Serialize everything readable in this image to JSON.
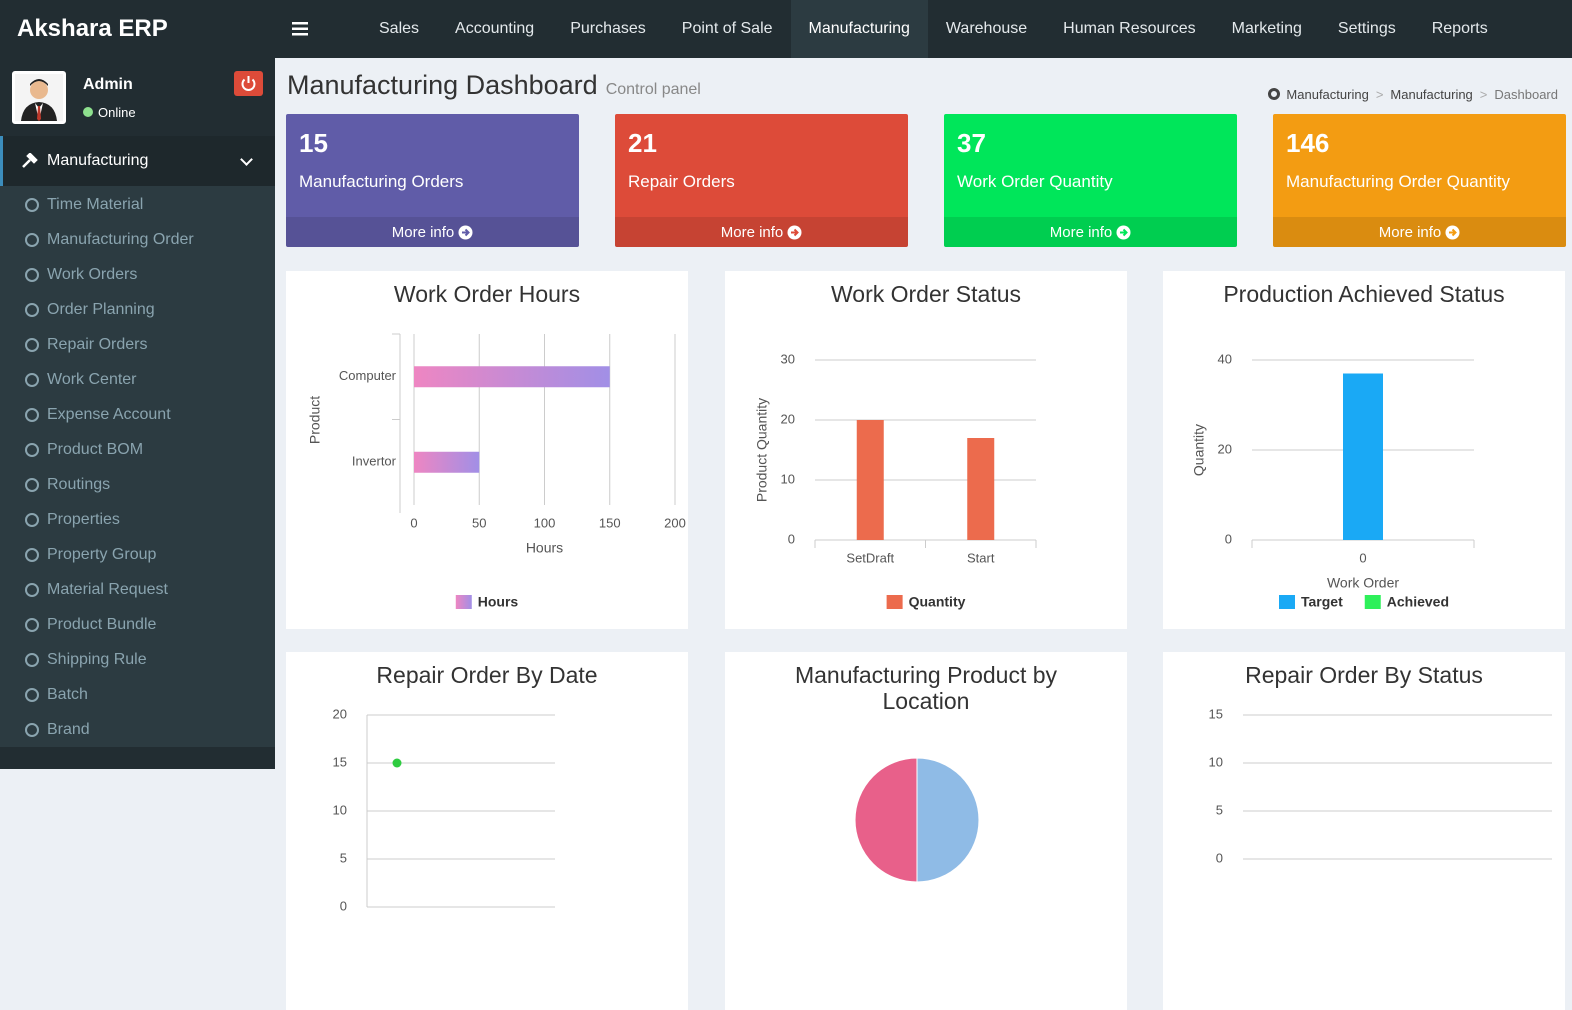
{
  "brand": "Akshara ERP",
  "user": {
    "name": "Admin",
    "status": "Online"
  },
  "nav": {
    "items": [
      "Sales",
      "Accounting",
      "Purchases",
      "Point of Sale",
      "Manufacturing",
      "Warehouse",
      "Human Resources",
      "Marketing",
      "Settings",
      "Reports"
    ],
    "active": 4
  },
  "sidebar": {
    "active": "Manufacturing",
    "items": [
      "Time Material",
      "Manufacturing Order",
      "Work Orders",
      "Order Planning",
      "Repair Orders",
      "Work Center",
      "Expense Account",
      "Product BOM",
      "Routings",
      "Properties",
      "Property Group",
      "Material Request",
      "Product Bundle",
      "Shipping Rule",
      "Batch",
      "Brand"
    ]
  },
  "header": {
    "title": "Manufacturing Dashboard",
    "subtitle": "Control panel"
  },
  "breadcrumb": {
    "items": [
      "Manufacturing",
      "Manufacturing",
      "Dashboard"
    ],
    "separator": ">"
  },
  "boxes": [
    {
      "value": 15,
      "label": "Manufacturing Orders",
      "link": "More info",
      "color": "#605ca8"
    },
    {
      "value": 21,
      "label": "Repair Orders",
      "link": "More info",
      "color": "#dd4b39"
    },
    {
      "value": 37,
      "label": "Work Order Quantity",
      "link": "More info",
      "color": "#00e65a"
    },
    {
      "value": 146,
      "label": "Manufacturing Order Quantity",
      "link": "More info",
      "color": "#f39c12"
    }
  ],
  "chart_data": [
    {
      "type": "hbar",
      "title": "Work Order Hours",
      "categories": [
        "Computer",
        "Invertor"
      ],
      "series": [
        {
          "name": "Hours",
          "color": [
            "#ee86c2",
            "#a18fe6"
          ],
          "values": [
            150,
            50
          ]
        }
      ],
      "xlim": [
        0,
        200
      ],
      "xticks": [
        0,
        50,
        100,
        150,
        200
      ],
      "xlabel": "Hours",
      "ylabel": "Product",
      "grid": true
    },
    {
      "type": "bar",
      "title": "Work Order Status",
      "categories": [
        "SetDraft",
        "Start"
      ],
      "series": [
        {
          "name": "Quantity",
          "color": "#ec6b4d",
          "values": [
            20,
            17
          ]
        }
      ],
      "ylim": [
        0,
        30
      ],
      "yticks": [
        0,
        10,
        20,
        30
      ],
      "ylabel": "Product Quantity",
      "grid": true
    },
    {
      "type": "bar",
      "title": "Production Achieved Status",
      "categories": [
        "0"
      ],
      "series": [
        {
          "name": "Target",
          "color": "#1aa9f5",
          "values": [
            37
          ]
        },
        {
          "name": "Achieved",
          "color": "#2ef05a",
          "values": [
            0
          ]
        }
      ],
      "ylim": [
        0,
        40
      ],
      "yticks": [
        0,
        20,
        40
      ],
      "xlabel": "Work Order",
      "ylabel": "Quantity",
      "grid": true
    },
    {
      "type": "line",
      "title": "Repair Order By Date",
      "categories": [
        null
      ],
      "series": [
        {
          "color": "#2ecc40",
          "values": [
            15
          ]
        }
      ],
      "ylim": [
        0,
        20
      ],
      "yticks": [
        0,
        5,
        10,
        15,
        20
      ],
      "grid": true
    },
    {
      "type": "pie",
      "title": "Manufacturing Product by Location",
      "values": [
        50,
        50
      ],
      "colors": [
        "#8fbbe6",
        "#e8608a"
      ]
    },
    {
      "type": "bar",
      "title": "Repair Order By Status",
      "categories": [],
      "series": [],
      "ylim": [
        0,
        15
      ],
      "yticks": [
        0,
        5,
        10,
        15
      ],
      "grid": true
    }
  ]
}
